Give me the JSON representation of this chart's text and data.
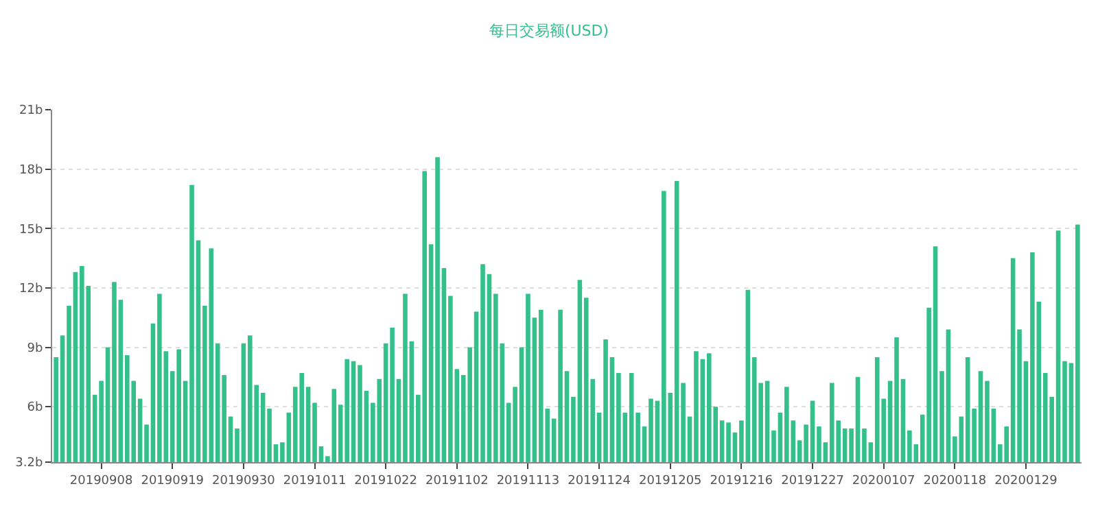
{
  "chart_data": {
    "type": "bar",
    "title": "每日交易额(USD)",
    "color": "#33c08a",
    "categories": [
      null,
      null,
      null,
      null,
      null,
      null,
      null,
      "20190908",
      null,
      null,
      null,
      null,
      null,
      null,
      null,
      null,
      null,
      null,
      "20190919",
      null,
      null,
      null,
      null,
      null,
      null,
      null,
      null,
      null,
      null,
      "20190930",
      null,
      null,
      null,
      null,
      null,
      null,
      null,
      null,
      null,
      null,
      "20191011",
      null,
      null,
      null,
      null,
      null,
      null,
      null,
      null,
      null,
      null,
      "20191022",
      null,
      null,
      null,
      null,
      null,
      null,
      null,
      null,
      null,
      null,
      "20191102",
      null,
      null,
      null,
      null,
      null,
      null,
      null,
      null,
      null,
      null,
      "20191113",
      null,
      null,
      null,
      null,
      null,
      null,
      null,
      null,
      null,
      null,
      "20191124",
      null,
      null,
      null,
      null,
      null,
      null,
      null,
      null,
      null,
      null,
      "20191205",
      null,
      null,
      null,
      null,
      null,
      null,
      null,
      null,
      null,
      null,
      "20191216",
      null,
      null,
      null,
      null,
      null,
      null,
      null,
      null,
      null,
      null,
      "20191227",
      null,
      null,
      null,
      null,
      null,
      null,
      null,
      null,
      null,
      null,
      "20200107",
      null,
      null,
      null,
      null,
      null,
      null,
      null,
      null,
      null,
      null,
      "20200118",
      null,
      null,
      null,
      null,
      null,
      null,
      null,
      null,
      null,
      null,
      "20200129",
      null,
      null,
      null,
      null,
      null,
      null,
      null,
      null
    ],
    "values": [
      8.5,
      9.6,
      11.1,
      12.8,
      13.1,
      12.1,
      6.6,
      7.3,
      9.0,
      12.3,
      11.4,
      8.6,
      7.3,
      6.4,
      5.1,
      10.2,
      11.7,
      8.8,
      7.8,
      8.9,
      7.3,
      17.2,
      14.4,
      11.1,
      14.0,
      9.2,
      7.6,
      5.5,
      4.9,
      9.2,
      9.6,
      7.1,
      6.7,
      5.9,
      4.1,
      4.2,
      5.7,
      7.0,
      7.7,
      7.0,
      6.2,
      4.0,
      3.5,
      6.9,
      6.1,
      8.4,
      8.3,
      8.1,
      6.8,
      6.2,
      7.4,
      9.2,
      10.0,
      7.4,
      11.7,
      9.3,
      6.6,
      17.9,
      14.2,
      18.6,
      13.0,
      11.6,
      7.9,
      7.6,
      9.0,
      10.8,
      13.2,
      12.7,
      11.7,
      9.2,
      6.2,
      7.0,
      9.0,
      11.7,
      10.5,
      10.9,
      5.9,
      5.4,
      10.9,
      7.8,
      6.5,
      12.4,
      11.5,
      7.4,
      5.7,
      9.4,
      8.5,
      7.7,
      5.7,
      7.7,
      5.7,
      5.0,
      6.4,
      6.3,
      16.9,
      6.7,
      17.4,
      7.2,
      5.5,
      8.8,
      8.4,
      8.7,
      6.0,
      5.3,
      5.2,
      4.7,
      5.3,
      11.9,
      8.5,
      7.2,
      7.3,
      4.8,
      5.7,
      7.0,
      5.3,
      4.3,
      5.1,
      6.3,
      5.0,
      4.2,
      7.2,
      5.3,
      4.9,
      4.9,
      7.5,
      4.9,
      4.2,
      8.5,
      6.4,
      7.3,
      9.5,
      7.4,
      4.8,
      4.1,
      5.6,
      11.0,
      14.1,
      7.8,
      9.9,
      4.5,
      5.5,
      8.5,
      5.9,
      7.8,
      7.3,
      5.9,
      4.1,
      5.0,
      13.5,
      9.9,
      8.3,
      13.8,
      11.3,
      7.7,
      6.5,
      14.9,
      8.3,
      8.2,
      15.2
    ],
    "ylim": [
      3.2,
      21
    ],
    "yticks": [
      {
        "value": 3.2,
        "label": "3.2b"
      },
      {
        "value": 6,
        "label": "6b"
      },
      {
        "value": 9,
        "label": "9b"
      },
      {
        "value": 12,
        "label": "12b"
      },
      {
        "value": 15,
        "label": "15b"
      },
      {
        "value": 18,
        "label": "18b"
      },
      {
        "value": 21,
        "label": "21b"
      }
    ],
    "grid": "y"
  }
}
